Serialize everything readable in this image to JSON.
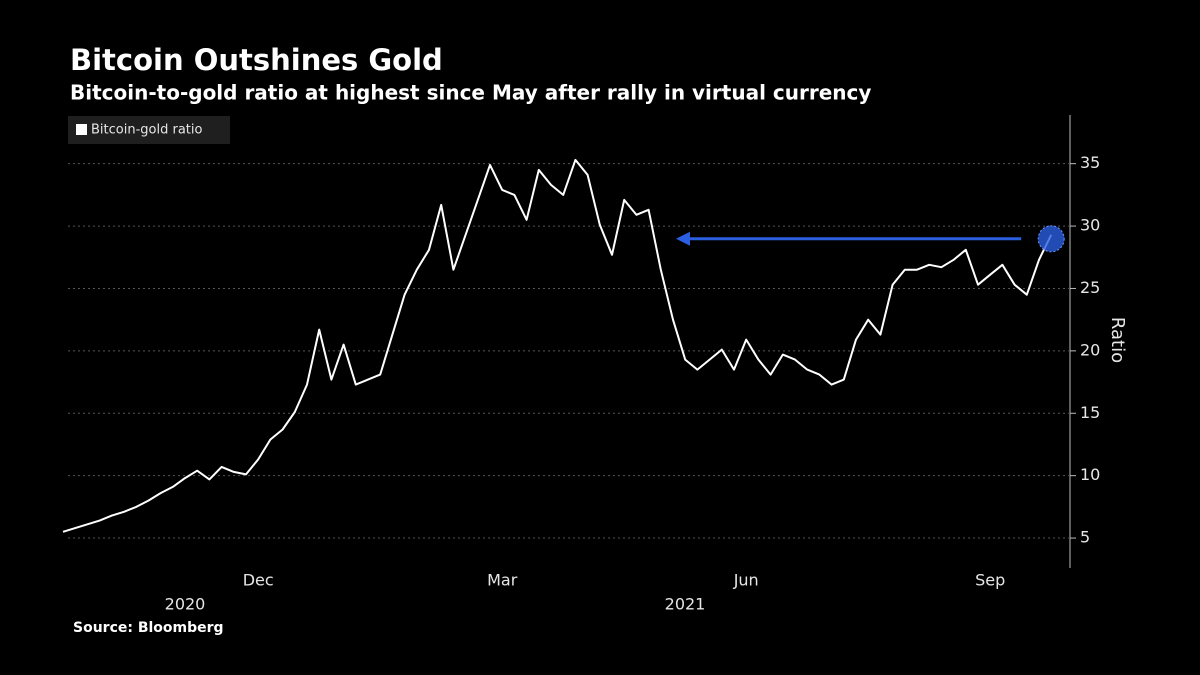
{
  "chart_data": {
    "type": "line",
    "title": "Bitcoin Outshines Gold",
    "subtitle": "Bitcoin-to-gold ratio at highest since May after rally in virtual currency",
    "source": "Source: Bloomberg",
    "ylabel": "Ratio",
    "years": [
      "2020",
      "2021"
    ],
    "categories": [
      null,
      null,
      null,
      null,
      null,
      null,
      null,
      null,
      null,
      null,
      null,
      null,
      null,
      null,
      null,
      null,
      "Dec",
      null,
      null,
      null,
      null,
      null,
      null,
      null,
      null,
      null,
      null,
      null,
      null,
      null,
      null,
      null,
      null,
      null,
      null,
      null,
      "Mar",
      null,
      null,
      null,
      null,
      null,
      null,
      null,
      null,
      null,
      null,
      null,
      null,
      null,
      null,
      null,
      null,
      null,
      null,
      null,
      "Jun",
      null,
      null,
      null,
      null,
      null,
      null,
      null,
      null,
      null,
      null,
      null,
      null,
      null,
      null,
      null,
      null,
      null,
      null,
      null,
      "Sep",
      null,
      null,
      null,
      null,
      null
    ],
    "series": [
      {
        "name": "Bitcoin-gold ratio",
        "color": "#ffffff",
        "values": [
          5.5,
          5.8,
          6.1,
          6.4,
          6.8,
          7.1,
          7.5,
          8.0,
          8.6,
          9.1,
          9.8,
          10.4,
          9.7,
          10.7,
          10.3,
          10.1,
          11.3,
          12.9,
          13.7,
          15.1,
          17.3,
          21.7,
          17.7,
          20.5,
          17.3,
          17.7,
          18.1,
          21.3,
          24.5,
          26.5,
          28.1,
          31.7,
          26.5,
          29.3,
          32.1,
          34.9,
          32.9,
          32.5,
          30.5,
          34.5,
          33.3,
          32.5,
          35.3,
          34.1,
          30.1,
          27.7,
          32.1,
          30.9,
          31.3,
          26.5,
          22.5,
          19.3,
          18.5,
          19.3,
          20.1,
          18.5,
          20.9,
          19.3,
          18.1,
          19.7,
          19.3,
          18.5,
          18.1,
          17.3,
          17.7,
          20.9,
          22.5,
          21.3,
          25.3,
          26.5,
          26.5,
          26.9,
          26.7,
          27.3,
          28.1,
          25.3,
          26.1,
          26.9,
          25.3,
          24.5,
          27.3,
          29.3
        ]
      }
    ],
    "ylim": [
      2.6,
      38.9
    ],
    "yticks": [
      5,
      10,
      15,
      20,
      25,
      30,
      35
    ],
    "grid": true,
    "legend": "top-left",
    "highlight_color": "#2b5fe0"
  }
}
